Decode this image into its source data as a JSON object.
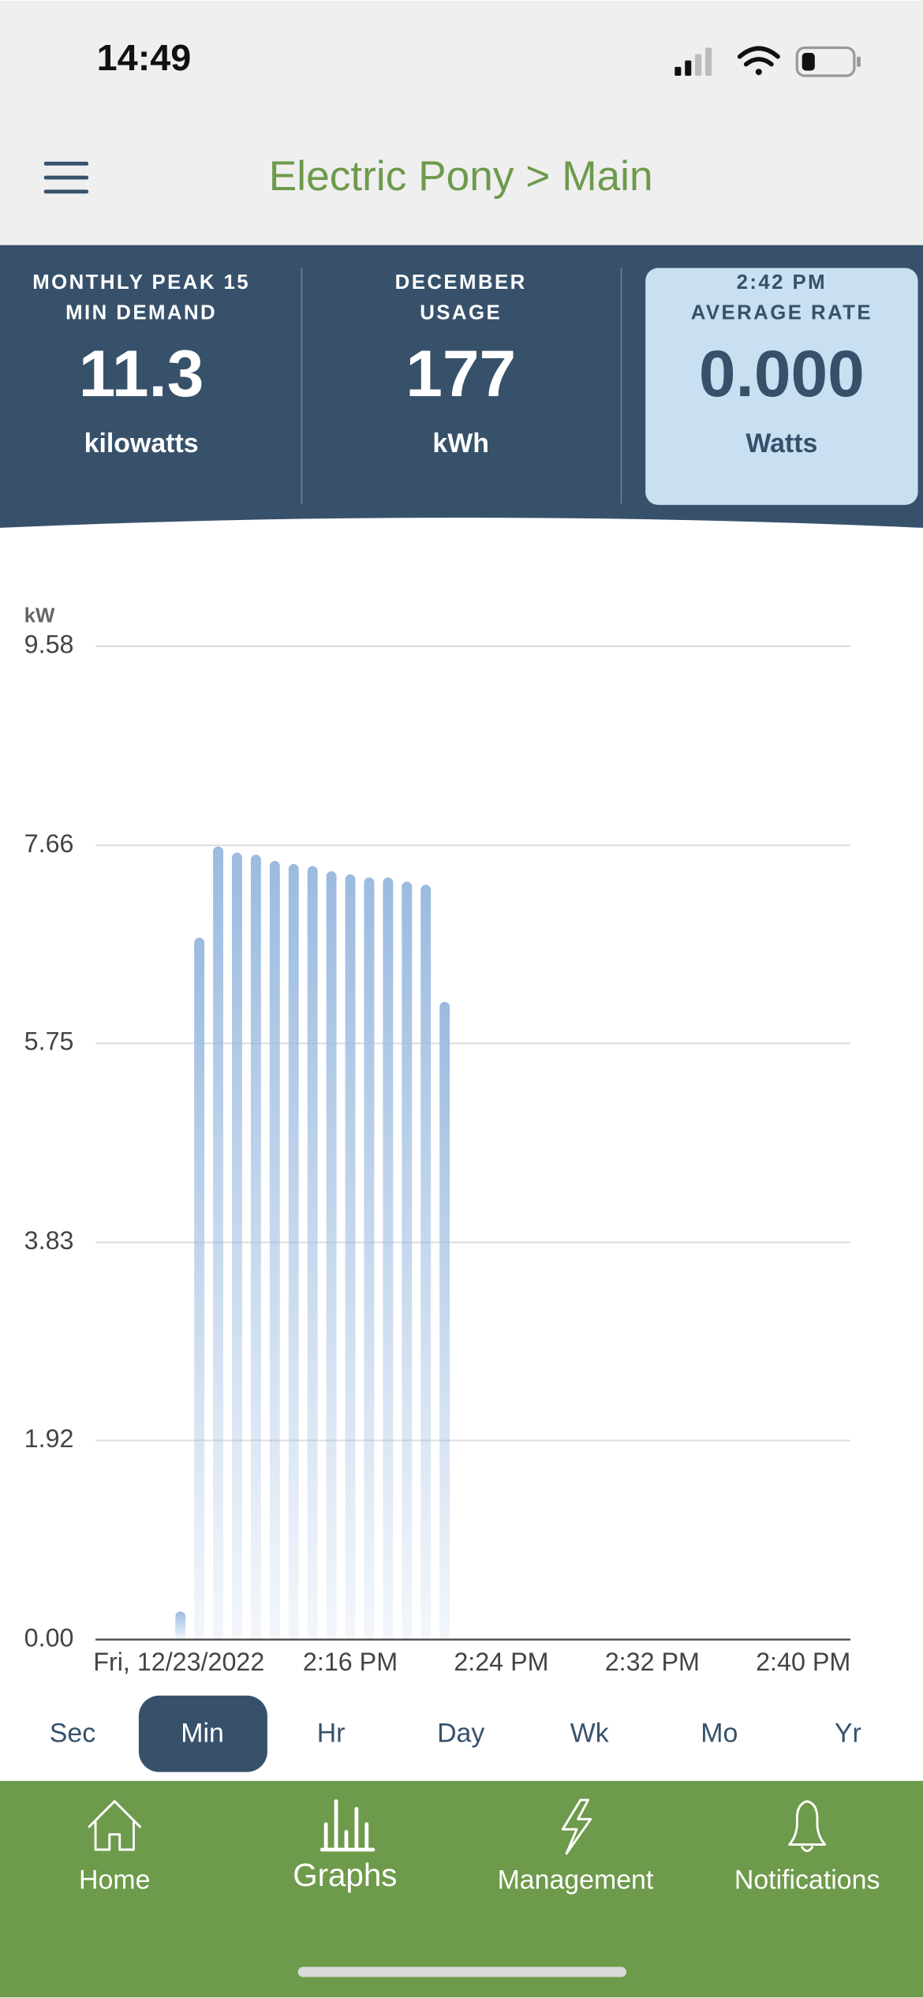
{
  "status_bar": {
    "time": "14:49"
  },
  "header": {
    "title": "Electric Pony > Main"
  },
  "stats": [
    {
      "label_lines": [
        "MONTHLY PEAK 15",
        "MIN DEMAND"
      ],
      "value": "11.3",
      "unit": "kilowatts"
    },
    {
      "label_lines": [
        "DECEMBER",
        "USAGE"
      ],
      "value": "177",
      "unit": "kWh"
    },
    {
      "label_lines": [
        "2:42 PM",
        "AVERAGE RATE"
      ],
      "value": "0.000",
      "unit": "Watts"
    }
  ],
  "chart_data": {
    "type": "bar",
    "y_label": "kW",
    "categories": [
      null,
      null,
      null,
      null,
      null,
      "Fri, 12/23/2022",
      null,
      null,
      null,
      null,
      null,
      null,
      null,
      "2:16 PM",
      null,
      null,
      null,
      null,
      null,
      null,
      null,
      "2:24 PM",
      null,
      null,
      null,
      null,
      null,
      null,
      null,
      "2:32 PM",
      null,
      null,
      null,
      null,
      null,
      null,
      null,
      "2:40 PM",
      null,
      null
    ],
    "values": [
      null,
      null,
      null,
      null,
      0.27,
      6.77,
      7.65,
      7.59,
      7.57,
      7.51,
      7.48,
      7.46,
      7.41,
      7.38,
      7.35,
      7.35,
      7.31,
      7.28,
      6.15,
      null,
      null,
      null,
      null,
      null,
      null,
      null,
      null,
      null,
      null,
      null,
      null,
      null,
      null,
      null,
      null,
      null,
      null,
      null,
      null,
      null
    ],
    "color": "#9bbbe0",
    "ylim": [
      0,
      9.58
    ],
    "yticks": [
      {
        "value": 0,
        "label": "0.00"
      },
      1.92,
      3.83,
      5.75,
      7.66,
      9.58
    ],
    "grid": true
  },
  "range_tabs": {
    "items": [
      "Sec",
      "Min",
      "Hr",
      "Day",
      "Wk",
      "Mo",
      "Yr"
    ],
    "selected": 1
  },
  "nav": {
    "items": [
      "Home",
      "Graphs",
      "Management",
      "Notifications"
    ]
  }
}
